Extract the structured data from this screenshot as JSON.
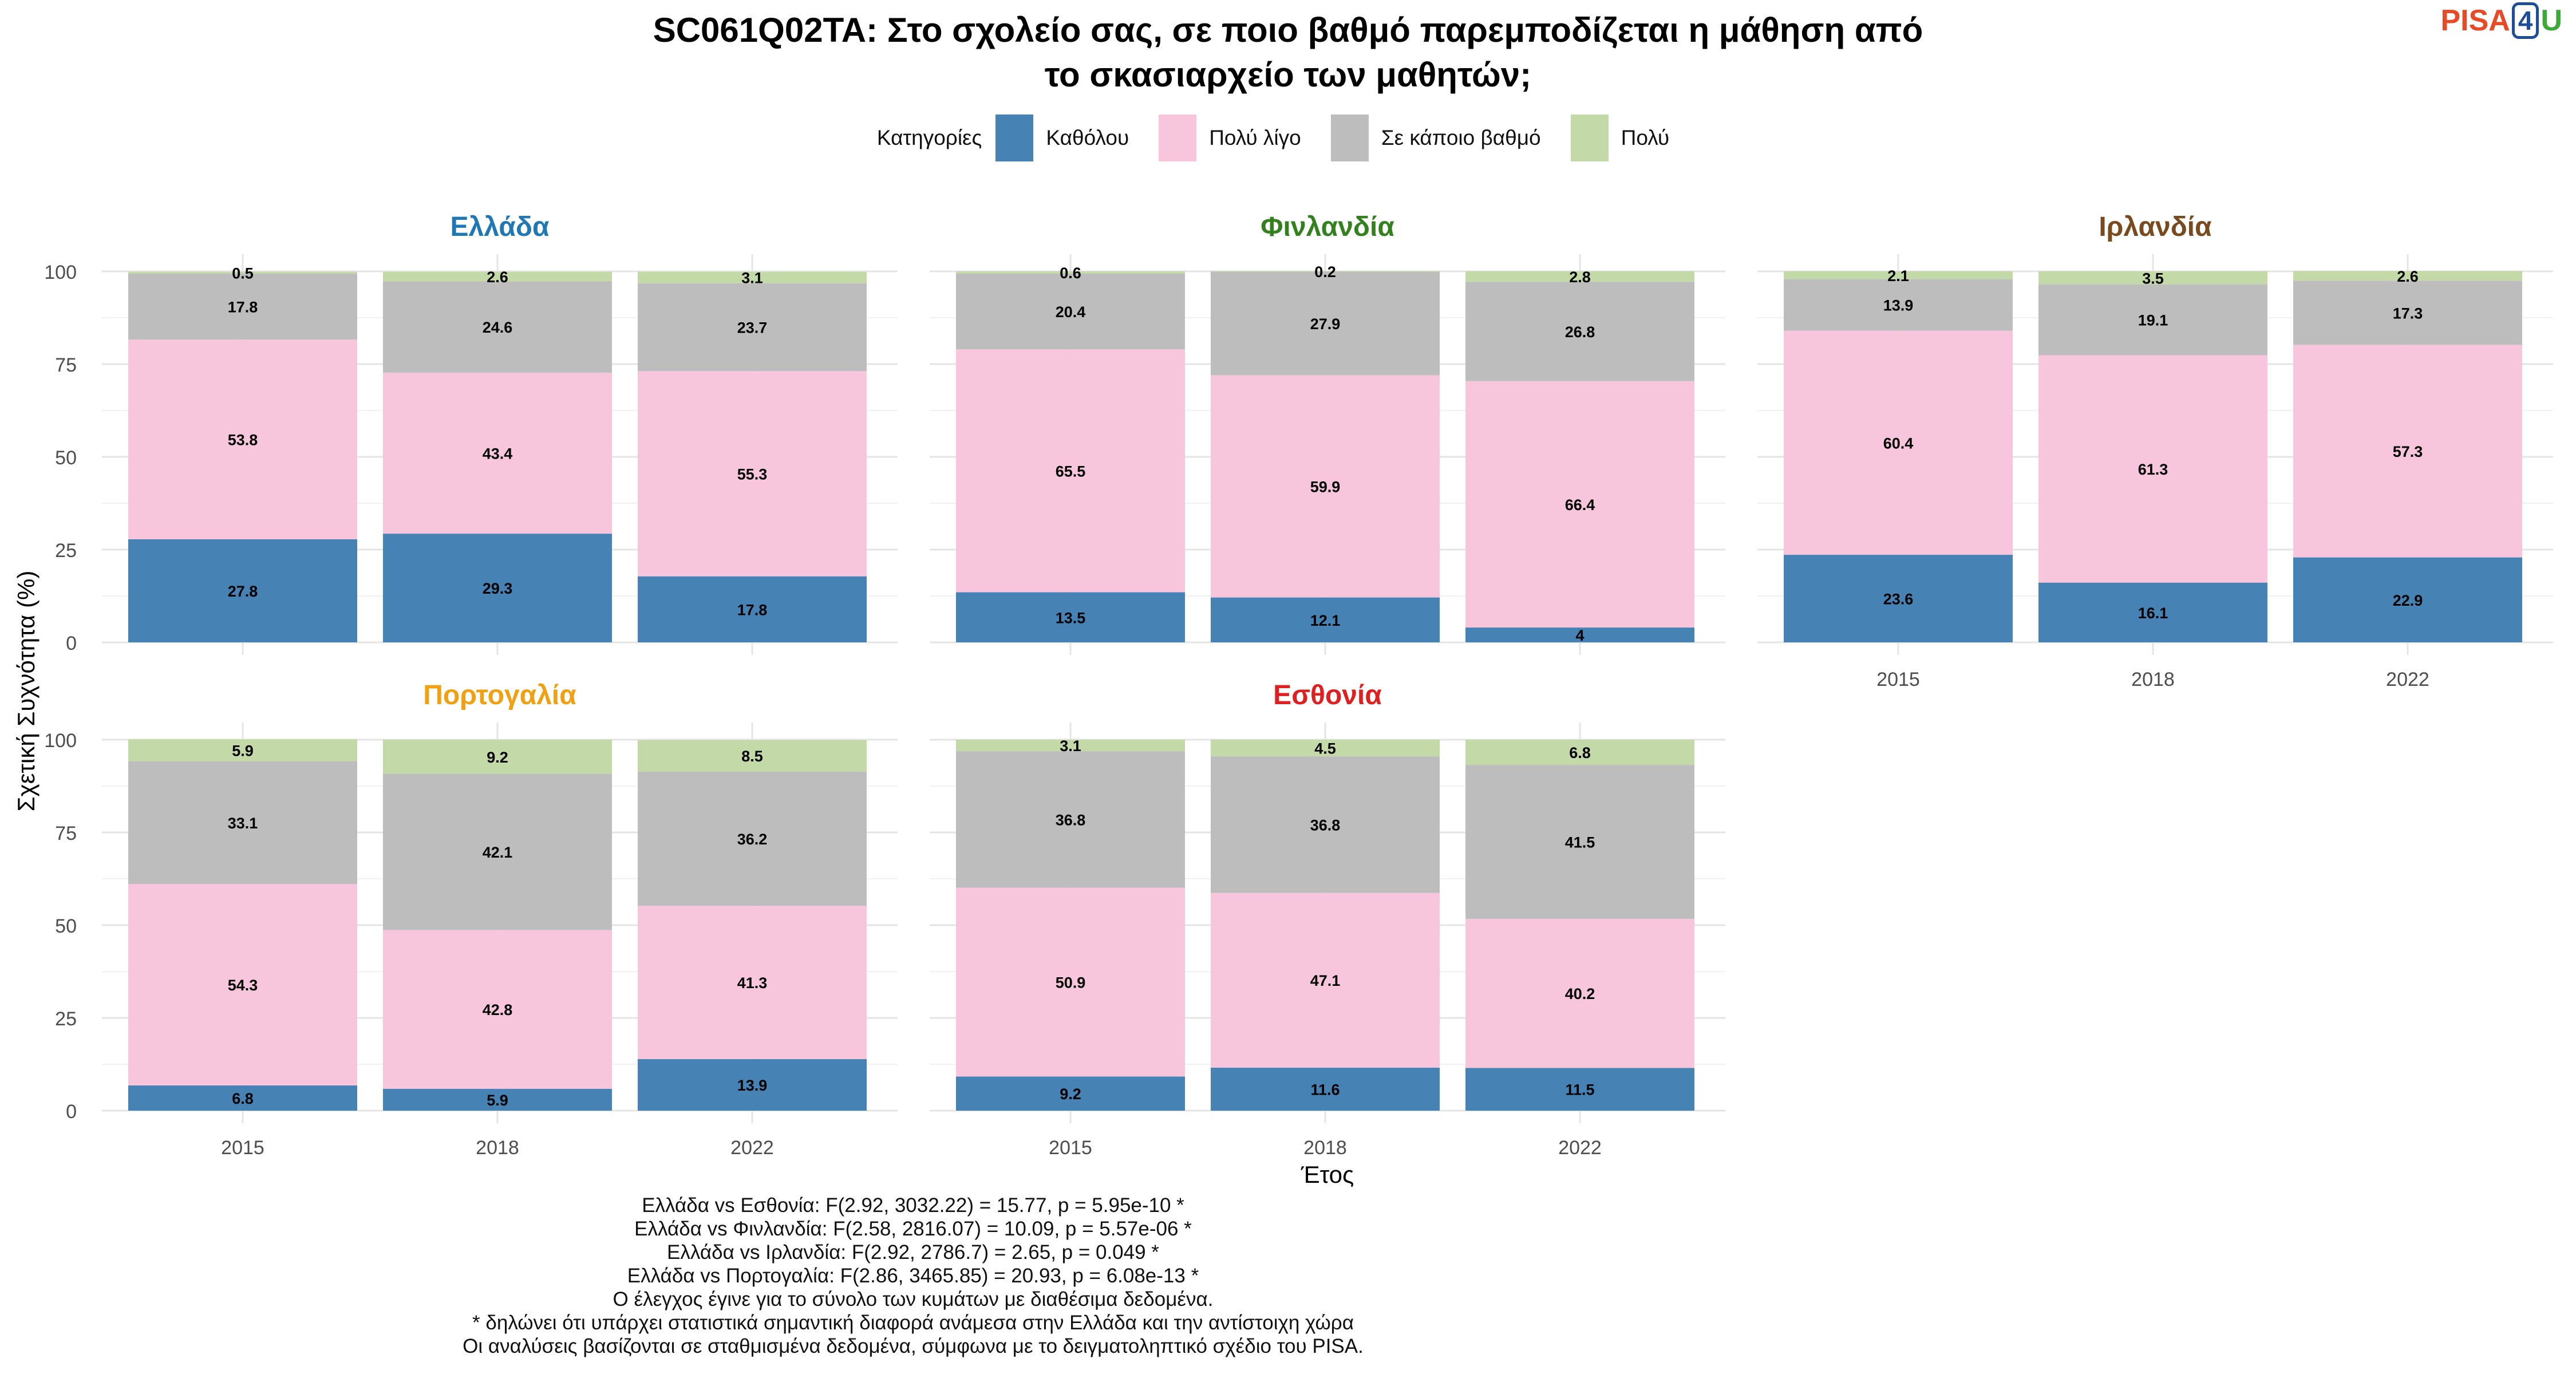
{
  "title_line1": "SC061Q02TA: Στο σχολείο σας, σε ποιο βαθμό παρεμποδίζεται η μάθηση από",
  "title_line2": "το σκασιαρχείο των μαθητών;",
  "logo": {
    "part1": "PISA",
    "part2": "4",
    "part3": "U"
  },
  "legend": {
    "title": "Κατηγορίες",
    "items": [
      {
        "label": "Καθόλου",
        "color": "#4682b4"
      },
      {
        "label": "Πολύ λίγο",
        "color": "#f8c6dc"
      },
      {
        "label": "Σε κάποιο βαθμό",
        "color": "#bdbdbd"
      },
      {
        "label": "Πολύ",
        "color": "#c4d9a8"
      }
    ]
  },
  "notes": [
    "Ελλάδα vs Εσθονία: F(2.92, 3032.22) = 15.77, p = 5.95e-10 *",
    "Ελλάδα vs Φινλανδία: F(2.58, 2816.07) = 10.09, p = 5.57e-06 *",
    "Ελλάδα vs Ιρλανδία: F(2.92, 2786.7) = 2.65, p = 0.049 *",
    "Ελλάδα vs Πορτογαλία: F(2.86, 3465.85) = 20.93, p = 6.08e-13 *",
    "Ο έλεγχος έγινε για το σύνολο των κυμάτων με διαθέσιμα δεδομένα.",
    "* δηλώνει ότι υπάρχει στατιστικά σημαντική διαφορά ανάμεσα στην Ελλάδα και την αντίστοιχη χώρα",
    "Οι αναλύσεις βασίζονται σε σταθμισμένα δεδομένα, σύμφωνα με το δειγματοληπτικό σχέδιο του PISA."
  ],
  "chart_data": {
    "type": "bar",
    "stacked": true,
    "xlabel": "Έτος",
    "ylabel": "Σχετική Συχνότητα (%)",
    "ylim": [
      0,
      100
    ],
    "yticks": [
      0,
      25,
      50,
      75,
      100
    ],
    "categories": [
      "2015",
      "2018",
      "2022"
    ],
    "series_names": [
      "Καθόλου",
      "Πολύ λίγο",
      "Σε κάποιο βαθμό",
      "Πολύ"
    ],
    "panels": [
      {
        "name": "Ελλάδα",
        "color": "#1f78b4",
        "values": [
          [
            27.8,
            53.8,
            17.8,
            0.5
          ],
          [
            29.3,
            43.4,
            24.6,
            2.6
          ],
          [
            17.8,
            55.3,
            23.7,
            3.1
          ]
        ]
      },
      {
        "name": "Φινλανδία",
        "color": "#33801f",
        "values": [
          [
            13.5,
            65.5,
            20.4,
            0.6
          ],
          [
            12.1,
            59.9,
            27.9,
            0.2
          ],
          [
            4,
            66.4,
            26.8,
            2.8
          ]
        ]
      },
      {
        "name": "Ιρλανδία",
        "color": "#7a4a1f",
        "values": [
          [
            23.6,
            60.4,
            13.9,
            2.1
          ],
          [
            16.1,
            61.3,
            19.1,
            3.5
          ],
          [
            22.9,
            57.3,
            17.3,
            2.6
          ]
        ]
      },
      {
        "name": "Πορτογαλία",
        "color": "#f0a010",
        "values": [
          [
            6.8,
            54.3,
            33.1,
            5.9
          ],
          [
            5.9,
            42.8,
            42.1,
            9.2
          ],
          [
            13.9,
            41.3,
            36.2,
            8.5
          ]
        ]
      },
      {
        "name": "Εσθονία",
        "color": "#e02020",
        "values": [
          [
            9.2,
            50.9,
            36.8,
            3.1
          ],
          [
            11.6,
            47.1,
            36.8,
            4.5
          ],
          [
            11.5,
            40.2,
            41.5,
            6.8
          ]
        ]
      }
    ]
  }
}
